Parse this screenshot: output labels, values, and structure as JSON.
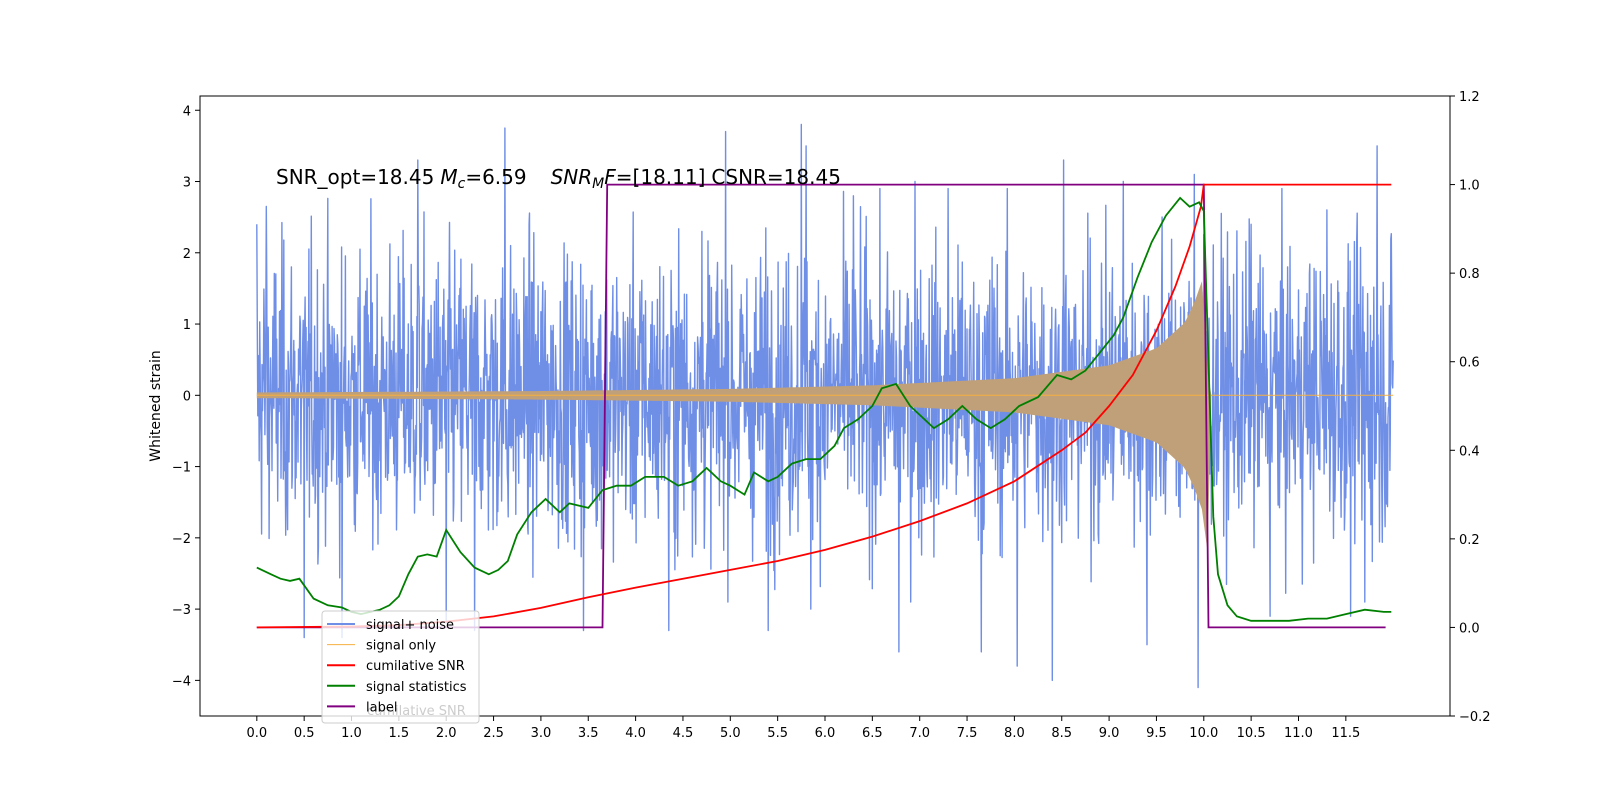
{
  "chart_data": {
    "type": "line",
    "title": "",
    "annotation": {
      "snr_opt": "SNR_opt=18.45",
      "mc_sym": "M",
      "mc_sub": "c",
      "mc_val": "=6.59",
      "mf_sym": "SNR",
      "mf_sub": "M",
      "mf_sym2": "F",
      "mf_val": "=[18.11]",
      "csnr": "CSNR=18.45"
    },
    "ylabel_left": "Whitened strain",
    "ylabel_right": "",
    "xlim": [
      -0.6,
      12.6
    ],
    "ylim_left": [
      -4.5,
      4.2
    ],
    "ylim_right": [
      -0.2,
      1.2
    ],
    "x_ticks": [
      "0.0",
      "0.5",
      "1.0",
      "1.5",
      "2.0",
      "2.5",
      "3.0",
      "3.5",
      "4.0",
      "4.5",
      "5.0",
      "5.5",
      "6.0",
      "6.5",
      "7.0",
      "7.5",
      "8.0",
      "8.5",
      "9.0",
      "9.5",
      "10.0",
      "10.5",
      "11.0",
      "11.5"
    ],
    "y_ticks_left": [
      "4",
      "3",
      "2",
      "1",
      "0",
      "−1",
      "−2",
      "−3",
      "−4"
    ],
    "y_ticks_right": [
      "1.2",
      "1.0",
      "0.8",
      "0.6",
      "0.4",
      "0.2",
      "0.0",
      "−0.2"
    ],
    "legend": {
      "location": "lower-left",
      "entries": [
        "signal+ noise",
        "signal only",
        "cumilative SNR",
        "signal statistics",
        "label"
      ],
      "overlapped_text": "cumilative SNR"
    },
    "colors": {
      "noise": "#6f8ee6",
      "signal": "#f5b041",
      "signal_fill": "#c0a078",
      "cumulative": "#ff0000",
      "statistics": "#008000",
      "label": "#800080"
    },
    "series": [
      {
        "name": "signal+ noise",
        "axis": "left",
        "style": "noise",
        "x_range": [
          0.0,
          12.0
        ],
        "std": 1.0,
        "extremes": [
          [
            0.0,
            2.4
          ],
          [
            0.1,
            2.65
          ],
          [
            0.5,
            -3.4
          ],
          [
            0.9,
            -3.4
          ],
          [
            1.7,
            3.3
          ],
          [
            2.0,
            -3.2
          ],
          [
            2.3,
            -3.3
          ],
          [
            2.62,
            3.75
          ],
          [
            3.45,
            -3.3
          ],
          [
            4.35,
            -3.3
          ],
          [
            4.7,
            2.3
          ],
          [
            4.95,
            3.7
          ],
          [
            5.4,
            -3.3
          ],
          [
            5.75,
            3.8
          ],
          [
            5.8,
            3.5
          ],
          [
            5.85,
            -3.0
          ],
          [
            6.3,
            2.8
          ],
          [
            6.95,
            3.0
          ],
          [
            6.78,
            -3.6
          ],
          [
            7.3,
            2.9
          ],
          [
            7.65,
            -3.6
          ],
          [
            8.03,
            -3.8
          ],
          [
            8.4,
            -4.0
          ],
          [
            8.52,
            3.3
          ],
          [
            9.15,
            3.0
          ],
          [
            9.4,
            -3.5
          ],
          [
            9.56,
            2.5
          ],
          [
            9.9,
            3.1
          ],
          [
            9.94,
            -4.1
          ],
          [
            10.7,
            -3.1
          ],
          [
            10.5,
            2.4
          ],
          [
            11.3,
            2.6
          ],
          [
            11.55,
            -3.1
          ],
          [
            11.7,
            -2.9
          ],
          [
            11.83,
            3.5
          ]
        ]
      },
      {
        "name": "signal only",
        "axis": "left",
        "style": "chirp",
        "t_merge": 9.98,
        "points": [
          [
            0.0,
            0.04
          ],
          [
            3.0,
            0.06
          ],
          [
            5.0,
            0.09
          ],
          [
            6.5,
            0.14
          ],
          [
            8.0,
            0.24
          ],
          [
            9.0,
            0.42
          ],
          [
            9.5,
            0.66
          ],
          [
            9.8,
            1.02
          ],
          [
            9.9,
            1.3
          ],
          [
            9.98,
            1.6
          ]
        ]
      },
      {
        "name": "cumilative SNR",
        "axis": "right",
        "points": [
          [
            0.0,
            0.0
          ],
          [
            1.0,
            0.002
          ],
          [
            1.5,
            0.005
          ],
          [
            2.0,
            0.013
          ],
          [
            2.5,
            0.025
          ],
          [
            3.0,
            0.044
          ],
          [
            3.5,
            0.068
          ],
          [
            4.0,
            0.09
          ],
          [
            4.5,
            0.11
          ],
          [
            5.0,
            0.13
          ],
          [
            5.5,
            0.15
          ],
          [
            6.0,
            0.175
          ],
          [
            6.5,
            0.205
          ],
          [
            7.0,
            0.24
          ],
          [
            7.5,
            0.28
          ],
          [
            8.0,
            0.33
          ],
          [
            8.5,
            0.4
          ],
          [
            8.75,
            0.44
          ],
          [
            9.0,
            0.5
          ],
          [
            9.25,
            0.57
          ],
          [
            9.5,
            0.67
          ],
          [
            9.7,
            0.77
          ],
          [
            9.85,
            0.86
          ],
          [
            9.97,
            0.95
          ],
          [
            10.0,
            1.0
          ],
          [
            11.98,
            1.0
          ]
        ]
      },
      {
        "name": "signal statistics",
        "axis": "right",
        "points": [
          [
            0.0,
            0.135
          ],
          [
            0.15,
            0.12
          ],
          [
            0.25,
            0.11
          ],
          [
            0.35,
            0.105
          ],
          [
            0.45,
            0.11
          ],
          [
            0.6,
            0.065
          ],
          [
            0.75,
            0.05
          ],
          [
            0.9,
            0.045
          ],
          [
            1.0,
            0.035
          ],
          [
            1.1,
            0.03
          ],
          [
            1.3,
            0.04
          ],
          [
            1.4,
            0.05
          ],
          [
            1.5,
            0.07
          ],
          [
            1.6,
            0.12
          ],
          [
            1.7,
            0.16
          ],
          [
            1.8,
            0.165
          ],
          [
            1.9,
            0.16
          ],
          [
            2.0,
            0.22
          ],
          [
            2.15,
            0.17
          ],
          [
            2.3,
            0.135
          ],
          [
            2.45,
            0.12
          ],
          [
            2.55,
            0.13
          ],
          [
            2.65,
            0.15
          ],
          [
            2.75,
            0.21
          ],
          [
            2.9,
            0.26
          ],
          [
            3.05,
            0.29
          ],
          [
            3.2,
            0.26
          ],
          [
            3.3,
            0.28
          ],
          [
            3.5,
            0.27
          ],
          [
            3.65,
            0.31
          ],
          [
            3.8,
            0.32
          ],
          [
            3.95,
            0.32
          ],
          [
            4.1,
            0.34
          ],
          [
            4.3,
            0.34
          ],
          [
            4.45,
            0.32
          ],
          [
            4.6,
            0.33
          ],
          [
            4.75,
            0.36
          ],
          [
            4.9,
            0.33
          ],
          [
            5.0,
            0.32
          ],
          [
            5.15,
            0.3
          ],
          [
            5.25,
            0.35
          ],
          [
            5.4,
            0.33
          ],
          [
            5.5,
            0.34
          ],
          [
            5.65,
            0.37
          ],
          [
            5.8,
            0.38
          ],
          [
            5.95,
            0.38
          ],
          [
            6.1,
            0.41
          ],
          [
            6.2,
            0.45
          ],
          [
            6.35,
            0.47
          ],
          [
            6.5,
            0.5
          ],
          [
            6.6,
            0.54
          ],
          [
            6.75,
            0.55
          ],
          [
            6.9,
            0.5
          ],
          [
            7.0,
            0.48
          ],
          [
            7.15,
            0.45
          ],
          [
            7.3,
            0.47
          ],
          [
            7.45,
            0.5
          ],
          [
            7.6,
            0.47
          ],
          [
            7.75,
            0.45
          ],
          [
            7.9,
            0.47
          ],
          [
            8.05,
            0.5
          ],
          [
            8.25,
            0.52
          ],
          [
            8.45,
            0.57
          ],
          [
            8.6,
            0.56
          ],
          [
            8.75,
            0.58
          ],
          [
            8.9,
            0.62
          ],
          [
            9.05,
            0.66
          ],
          [
            9.15,
            0.7
          ],
          [
            9.3,
            0.79
          ],
          [
            9.45,
            0.87
          ],
          [
            9.6,
            0.93
          ],
          [
            9.75,
            0.97
          ],
          [
            9.85,
            0.95
          ],
          [
            9.95,
            0.96
          ],
          [
            10.0,
            0.94
          ],
          [
            10.05,
            0.6
          ],
          [
            10.1,
            0.25
          ],
          [
            10.15,
            0.12
          ],
          [
            10.25,
            0.05
          ],
          [
            10.35,
            0.025
          ],
          [
            10.5,
            0.015
          ],
          [
            10.7,
            0.015
          ],
          [
            10.9,
            0.015
          ],
          [
            11.1,
            0.02
          ],
          [
            11.3,
            0.02
          ],
          [
            11.5,
            0.03
          ],
          [
            11.7,
            0.04
          ],
          [
            11.9,
            0.035
          ],
          [
            11.98,
            0.035
          ]
        ]
      },
      {
        "name": "label",
        "axis": "right",
        "points": [
          [
            0.0,
            0.0
          ],
          [
            3.65,
            0.0
          ],
          [
            3.7,
            1.0
          ],
          [
            10.0,
            1.0
          ],
          [
            10.05,
            0.0
          ],
          [
            11.92,
            0.0
          ]
        ]
      }
    ]
  }
}
